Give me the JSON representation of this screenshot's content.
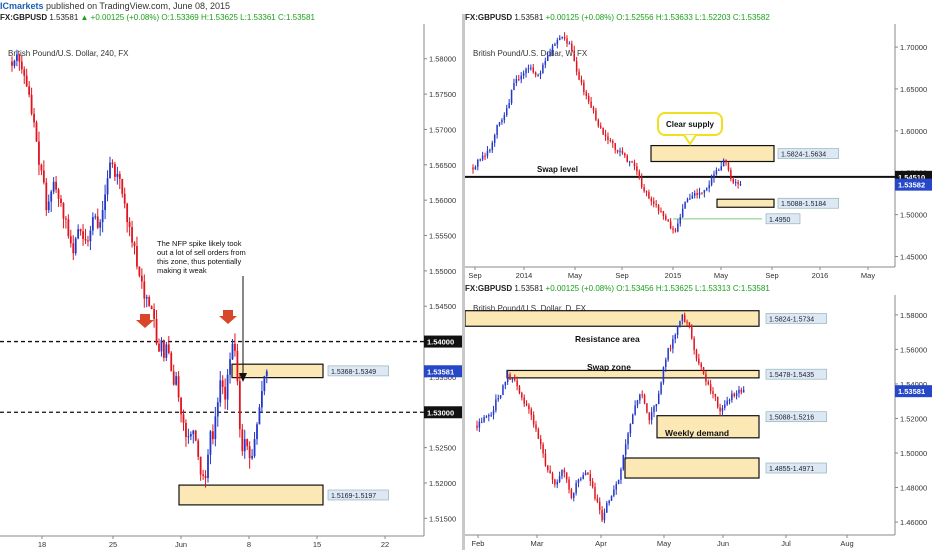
{
  "header": {
    "brand": "ICmarkets",
    "published": "published on TradingView.com, June 08, 2015",
    "symbol": "GBPUSD",
    "last": "1.53581",
    "change": "▲ +0.00125 (+0.08%)",
    "open": "O:1.53369",
    "high": "H:1.53625",
    "low": "L:1.53361",
    "close": "C:1.53581"
  },
  "panels": {
    "h4": {
      "ticker": "FX:GBPUSD",
      "title": "British Pound/U.S. Dollar, 240, FX",
      "annotation": [
        "The NFP spike likely took",
        "out a lot of sell orders from",
        "this zone, thus potentially",
        "making it weak"
      ]
    },
    "weekly": {
      "ticker": "FX:GBPUSD",
      "last": "1.53581",
      "change": "+0.00125 (+0.08%)",
      "open": "O:1.52556",
      "high": "H:1.53633",
      "low": "L:1.52203",
      "close": "C:1.53582",
      "title": "British Pound/U.S. Dollar, W, FX",
      "callout": "Clear supply",
      "swap_label": "Swap level"
    },
    "daily": {
      "ticker": "FX:GBPUSD",
      "last": "1.53581",
      "change": "+0.00125 (+0.08%)",
      "open": "O:1.53456",
      "high": "H:1.53625",
      "low": "L:1.53313",
      "close": "C:1.53581",
      "title": "British Pound/U.S. Dollar, D, FX",
      "resistance_label": "Resistance area",
      "swap_label": "Swap zone",
      "demand_label": "Weekly demand"
    }
  },
  "chart_data": [
    {
      "type": "candlestick",
      "title": "British Pound/U.S. Dollar, 240, FX",
      "ylim": [
        1.5125,
        1.5835
      ],
      "y_ticks": [
        "1.58000",
        "1.57500",
        "1.57000",
        "1.56500",
        "1.56000",
        "1.55500",
        "1.55000",
        "1.54500",
        "1.54000",
        "1.53500",
        "1.53000",
        "1.52500",
        "1.52000",
        "1.51500"
      ],
      "x_ticks": [
        "18",
        "25",
        "Jun",
        "8",
        "15",
        "22"
      ],
      "levels": [
        {
          "label": "1.54000",
          "value": 1.54
        },
        {
          "label": "1.53000",
          "value": 1.53
        }
      ],
      "zones": [
        {
          "label": "1.5368-1.5349",
          "high": 1.5368,
          "low": 1.5349
        },
        {
          "label": "1.5169-1.5197",
          "high": 1.5197,
          "low": 1.5169
        }
      ],
      "price_label": "1.53581",
      "closes": [
        1.579,
        1.5797,
        1.5806,
        1.5796,
        1.5785,
        1.5776,
        1.5761,
        1.5749,
        1.5722,
        1.571,
        1.5683,
        1.565,
        1.5642,
        1.5625,
        1.5586,
        1.5598,
        1.5612,
        1.5626,
        1.5615,
        1.5602,
        1.5596,
        1.5574,
        1.5573,
        1.5549,
        1.5539,
        1.5525,
        1.5546,
        1.5559,
        1.5556,
        1.5545,
        1.5543,
        1.5542,
        1.5557,
        1.5576,
        1.5577,
        1.5561,
        1.5569,
        1.5586,
        1.5608,
        1.5631,
        1.5653,
        1.5651,
        1.5633,
        1.5637,
        1.563,
        1.5609,
        1.5595,
        1.5569,
        1.5562,
        1.554,
        1.5535,
        1.5506,
        1.5493,
        1.5485,
        1.5461,
        1.5463,
        1.545,
        1.5446,
        1.5432,
        1.5397,
        1.5386,
        1.5402,
        1.5377,
        1.5396,
        1.5384,
        1.5358,
        1.5339,
        1.5351,
        1.5321,
        1.5297,
        1.5285,
        1.5265,
        1.5266,
        1.5269,
        1.5274,
        1.526,
        1.5237,
        1.5212,
        1.521,
        1.5207,
        1.524,
        1.5273,
        1.5262,
        1.5294,
        1.5314,
        1.5345,
        1.5336,
        1.5318,
        1.5353,
        1.5375,
        1.5397,
        1.5387,
        1.5344,
        1.5276,
        1.5245,
        1.5262,
        1.5252,
        1.5235,
        1.5238,
        1.5262,
        1.5283,
        1.5307,
        1.533,
        1.5351,
        1.5358
      ]
    },
    {
      "type": "candlestick",
      "title": "British Pound/U.S. Dollar, W, FX",
      "ylim": [
        1.4375,
        1.7275
      ],
      "y_ticks": [
        "1.70000",
        "1.65000",
        "1.60000",
        "1.55000",
        "1.50000",
        "1.45000"
      ],
      "x_ticks": [
        "Sep",
        "2014",
        "May",
        "Sep",
        "2015",
        "May",
        "Sep",
        "2016",
        "May"
      ],
      "levels": [
        {
          "label": "1.54510",
          "value": 1.5451
        }
      ],
      "zones": [
        {
          "label": "1.5824-1.5634",
          "high": 1.5824,
          "low": 1.5634
        },
        {
          "label": "1.5088-1.5184",
          "high": 1.5184,
          "low": 1.5088
        }
      ],
      "line": {
        "label": "1.4950",
        "value": 1.495
      },
      "price_label": "1.53582"
    },
    {
      "type": "candlestick",
      "title": "British Pound/U.S. Dollar, D, FX",
      "ylim": [
        1.4525,
        1.5915
      ],
      "y_ticks": [
        "1.58000",
        "1.56000",
        "1.54000",
        "1.52000",
        "1.50000",
        "1.48000",
        "1.46000"
      ],
      "x_ticks": [
        "Feb",
        "Mar",
        "Apr",
        "May",
        "Jun",
        "Jul",
        "Aug"
      ],
      "zones": [
        {
          "label": "1.5824-1.5734",
          "high": 1.5824,
          "low": 1.5734
        },
        {
          "label": "1.5478-1.5435",
          "high": 1.5478,
          "low": 1.5435
        },
        {
          "label": "1.5088-1.5216",
          "high": 1.5216,
          "low": 1.5088
        },
        {
          "label": "1.4855-1.4971",
          "high": 1.4971,
          "low": 1.4855
        }
      ],
      "price_label": "1.53581"
    }
  ],
  "colors": {
    "up": "#2337c9",
    "down": "#e0141e",
    "zone_fill": "#fbe8b4",
    "callout_border": "#f0e020",
    "weekly_line": "#7fc97f",
    "label_box": "#dde8f5",
    "price_tag": "#2547c8"
  }
}
